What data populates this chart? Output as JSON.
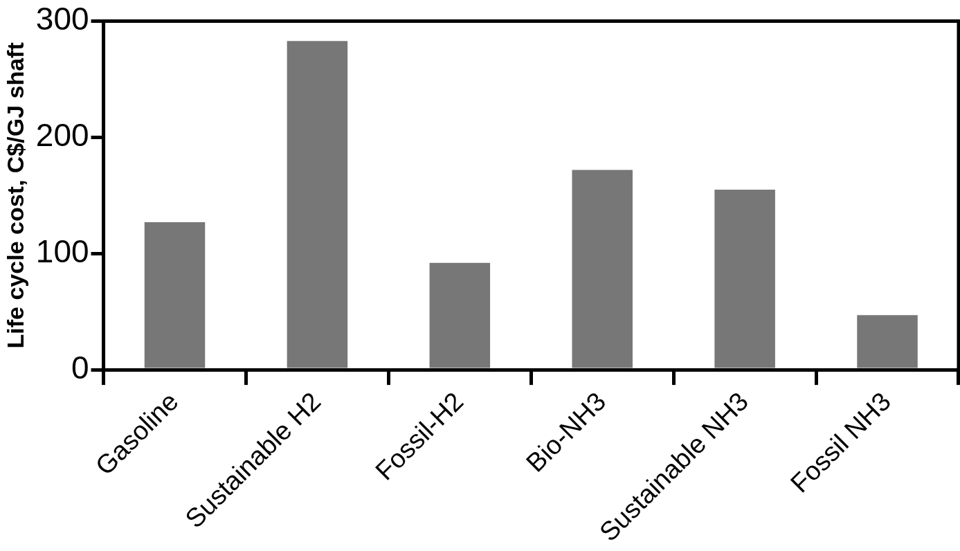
{
  "chart_data": {
    "type": "bar",
    "ylabel": "Life cycle cost, C$/GJ shaft",
    "categories": [
      "Gasoline",
      "Sustainable H2",
      "Fossil-H2",
      "Bio-NH3",
      "Sustainable NH3",
      "Fossil NH3"
    ],
    "values": [
      127,
      283,
      92,
      172,
      155,
      47
    ],
    "color": "#777777",
    "ylim": [
      0,
      300
    ],
    "yticks": [
      0,
      100,
      200,
      300
    ],
    "grid": false,
    "legend": false
  }
}
